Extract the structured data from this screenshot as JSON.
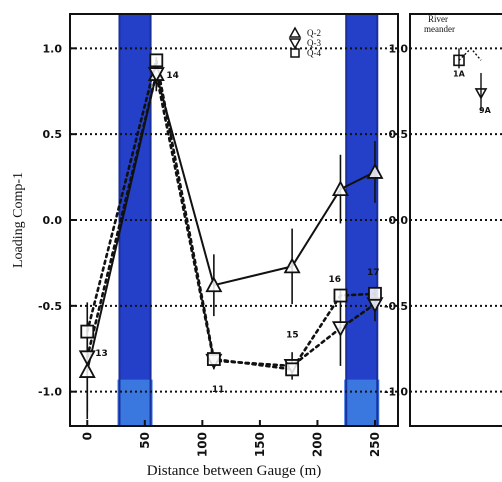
{
  "chart_data": [
    {
      "type": "line",
      "xlabel": "Distance between Gauge (m)",
      "ylabel": "Loading Comp-1",
      "xlim": [
        -15,
        270
      ],
      "ylim": [
        -1.2,
        1.2
      ],
      "x_ticks": [
        "0",
        "50",
        "100",
        "150",
        "200",
        "250"
      ],
      "y_ticks": [
        "1.0",
        "0.5",
        "0.0",
        "-0.5",
        "-1.0"
      ],
      "grid": "horizontal dotted at -1.0, -0.5, 0.0, 0.5, 1.0",
      "legend_position": "top-right",
      "shaded_bands": [
        {
          "x_range": [
            28,
            55
          ],
          "y_range": [
            -1.2,
            1.2
          ],
          "color": "#2540c8"
        },
        {
          "x_range": [
            225,
            252
          ],
          "y_range": [
            -1.2,
            1.2
          ],
          "color": "#2540c8"
        }
      ],
      "series": [
        {
          "name": "Q-2",
          "marker": "triangle-up",
          "line_style": "solid",
          "x": [
            0,
            60,
            110,
            178,
            220,
            250
          ],
          "y": [
            -0.88,
            0.85,
            -0.38,
            -0.27,
            0.18,
            0.28
          ],
          "y_err": [
            0.28,
            0.08,
            0.18,
            0.22,
            0.2,
            0.18
          ]
        },
        {
          "name": "Q-3",
          "marker": "triangle-down",
          "line_style": "dotted",
          "x": [
            0,
            60,
            110,
            178,
            220,
            250
          ],
          "y": [
            -0.8,
            0.85,
            -0.82,
            -0.85,
            -0.63,
            -0.49
          ],
          "y_err": [
            0.32,
            0.1,
            0.05,
            0.08,
            0.22,
            0.1
          ]
        },
        {
          "name": "Q-4",
          "marker": "square",
          "line_style": "dotted",
          "x": [
            0,
            60,
            110,
            178,
            220,
            250
          ],
          "y": [
            -0.65,
            0.93,
            -0.81,
            -0.87,
            -0.44,
            -0.43
          ],
          "y_err": [
            0.0,
            0.0,
            0.0,
            0.0,
            0.0,
            0.0
          ]
        }
      ],
      "point_labels": [
        {
          "text": "13",
          "x": 0,
          "y": -0.77
        },
        {
          "text": "14",
          "x": 60,
          "y": 0.85
        },
        {
          "text": "11",
          "x": 110,
          "y": -0.92
        },
        {
          "text": "15",
          "x": 178,
          "y": -0.72
        },
        {
          "text": "16",
          "x": 220,
          "y": -0.36
        },
        {
          "text": "17",
          "x": 250,
          "y": -0.32
        }
      ]
    },
    {
      "type": "scatter",
      "ylim": [
        -1.2,
        1.2
      ],
      "y_ticks": [
        "1.0",
        "0.5",
        "0.0",
        "-0.5",
        "-1.0"
      ],
      "annotation": "River meander",
      "points": [
        {
          "label": "1A",
          "marker": "square",
          "y": 0.93
        },
        {
          "label": "9A",
          "marker": "triangle-down",
          "y": 0.74
        }
      ]
    }
  ],
  "colors": {
    "band": "#2540c8",
    "band_edge": "#1a2f9e",
    "band_foot": "#3a78e0",
    "ink": "#111111"
  }
}
